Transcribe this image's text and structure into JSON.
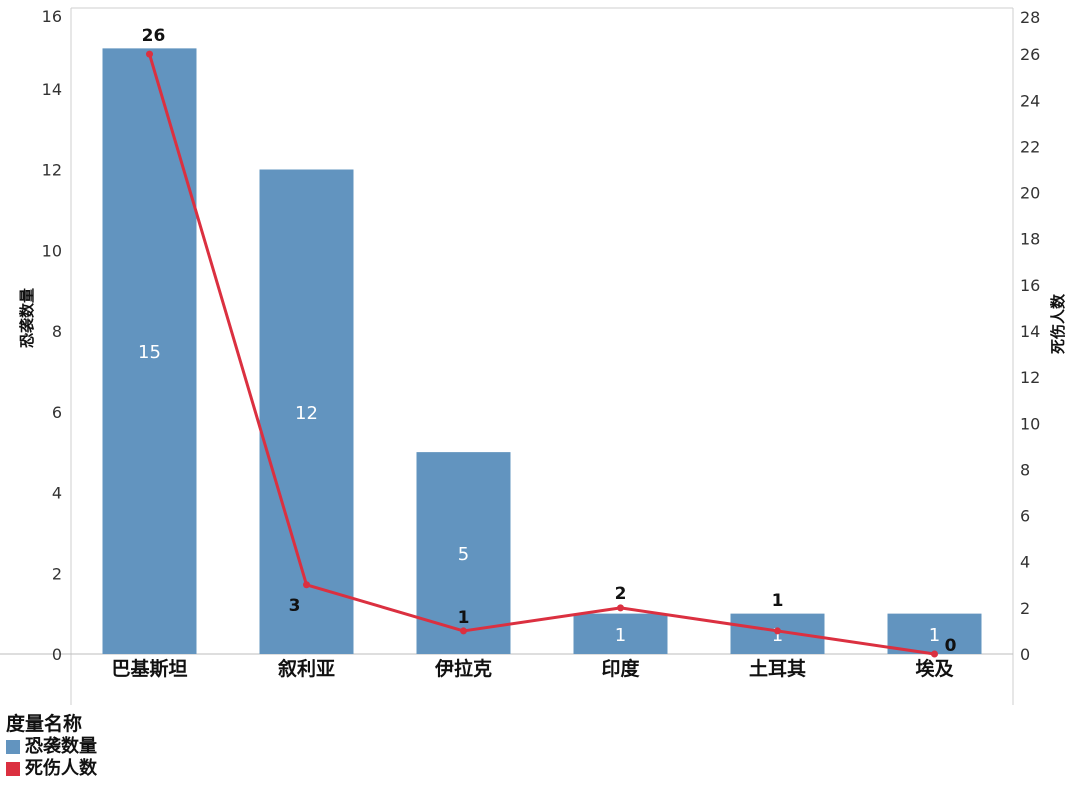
{
  "chart_data": {
    "type": "bar",
    "categories": [
      "巴基斯坦",
      "叙利亚",
      "伊拉克",
      "印度",
      "土耳其",
      "埃及"
    ],
    "series": [
      {
        "name": "恐袭数量",
        "type": "bar",
        "axis": "left",
        "color": "#6294bf",
        "values": [
          15,
          12,
          5,
          1,
          1,
          1
        ]
      },
      {
        "name": "死伤人数",
        "type": "line",
        "axis": "right",
        "color": "#db3040",
        "values": [
          26,
          3,
          1,
          2,
          1,
          0
        ]
      }
    ],
    "ylabel": "恐袭数量",
    "ylabel_right": "死伤人数",
    "ylim": [
      0,
      16
    ],
    "ylim_right": [
      0,
      28
    ],
    "yticks": [
      0,
      2,
      4,
      6,
      8,
      10,
      12,
      14,
      16
    ],
    "yticks_right": [
      0,
      2,
      4,
      6,
      8,
      10,
      12,
      14,
      16,
      18,
      20,
      22,
      24,
      26,
      28
    ],
    "legend": {
      "title": "度量名称",
      "placement": "bottom-left",
      "items": [
        "恐袭数量",
        "死伤人数"
      ]
    },
    "grid": false
  }
}
